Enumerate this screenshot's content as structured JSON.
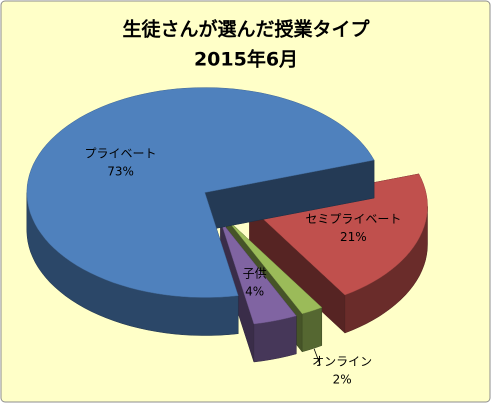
{
  "chart_data": {
    "type": "pie3d",
    "title": "生徒さんが選んだ授業タイプ",
    "subtitle": "2015年6月",
    "categories": [
      "セミプライベート",
      "オンライン",
      "子供",
      "プライベート"
    ],
    "values": [
      21,
      2,
      4,
      73
    ],
    "value_labels": [
      "21%",
      "2%",
      "4%",
      "73%"
    ],
    "colors": [
      "#c0504d",
      "#9bbb59",
      "#8064a2",
      "#4f81bd"
    ]
  }
}
